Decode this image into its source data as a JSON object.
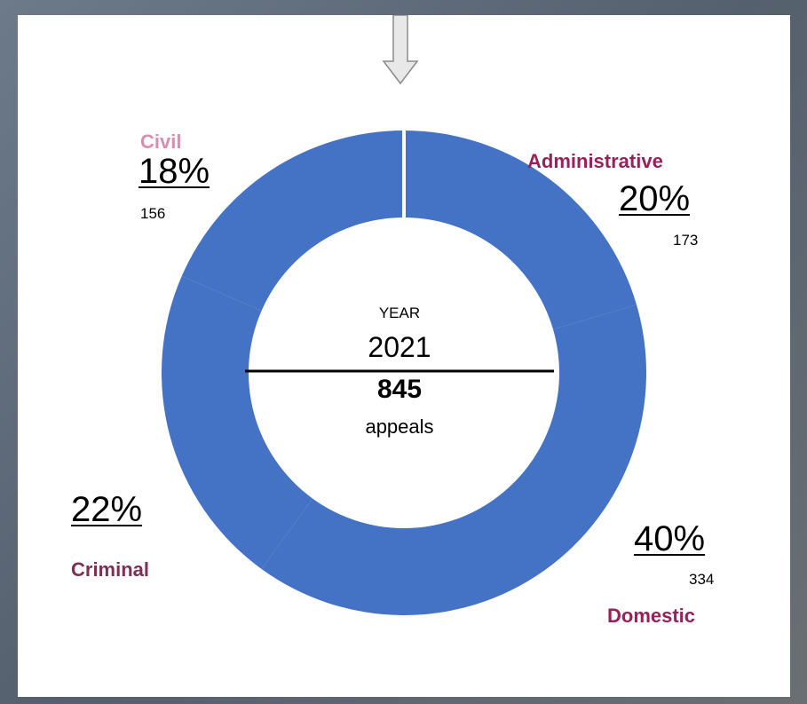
{
  "colors": {
    "ring": "#4472c4",
    "civil": "#d58fb4",
    "category": "#9b1f5b",
    "criminal": "#7d2f55"
  },
  "center": {
    "year_label": "YEAR",
    "year": "2021",
    "total": "845",
    "total_unit": "appeals"
  },
  "labels": {
    "civil": {
      "name": "Civil",
      "pct": "18%",
      "count": "156"
    },
    "administrative": {
      "name": "Administrative",
      "pct": "20%",
      "count": "173"
    },
    "criminal": {
      "name": "Criminal",
      "pct": "22%",
      "count": ""
    },
    "domestic": {
      "name": "Domestic",
      "pct": "40%",
      "count": "334"
    }
  },
  "chart_data": {
    "type": "pie",
    "style": "donut",
    "categories": [
      "Administrative",
      "Domestic",
      "Criminal",
      "Civil"
    ],
    "values": [
      173,
      334,
      182,
      156
    ],
    "percentages": [
      20,
      40,
      22,
      18
    ],
    "total": 845,
    "center_text": [
      "YEAR",
      "2021",
      "845",
      "appeals"
    ]
  }
}
